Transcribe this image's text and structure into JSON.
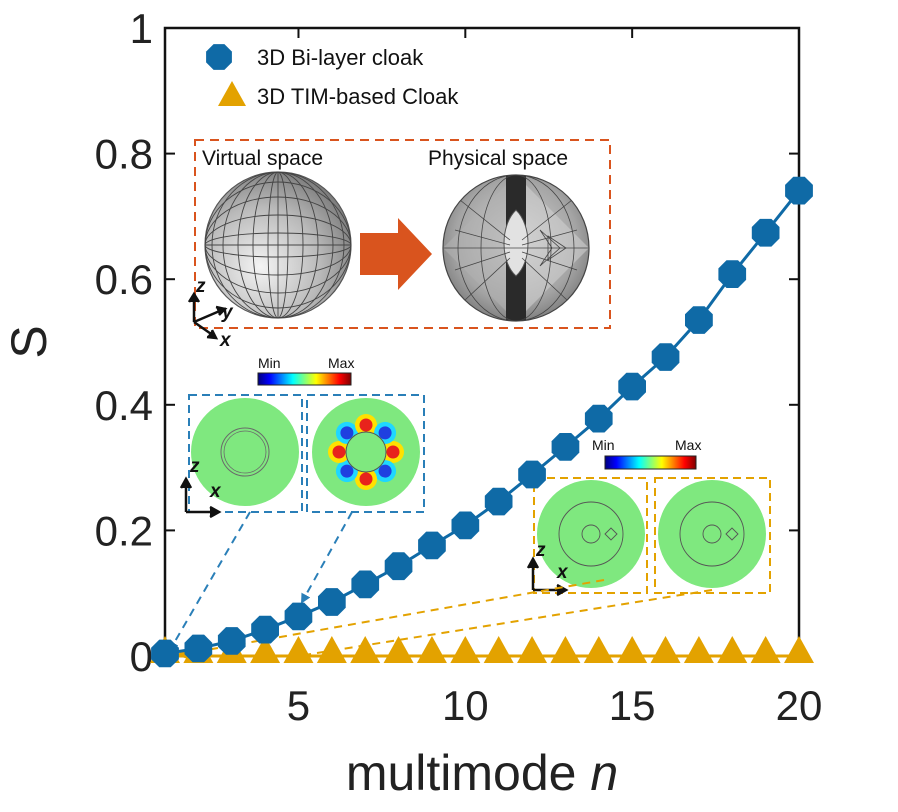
{
  "chart_data": {
    "type": "line",
    "title": "",
    "xlabel": "multimode",
    "xlabel_italic": "n",
    "ylabel": "S",
    "xlim": [
      1,
      20
    ],
    "ylim": [
      0,
      1
    ],
    "x_ticks": [
      5,
      10,
      15,
      20
    ],
    "y_ticks": [
      0,
      0.2,
      0.4,
      0.6,
      0.8,
      1
    ],
    "y_tick_labels": [
      "0",
      "0.2",
      "0.4",
      "0.6",
      "0.8",
      "1"
    ],
    "grid": false,
    "legend_position": "top-left",
    "x": [
      1,
      2,
      3,
      4,
      5,
      6,
      7,
      8,
      9,
      10,
      11,
      12,
      13,
      14,
      15,
      16,
      17,
      18,
      19,
      20
    ],
    "series": [
      {
        "name": "3D Bi-layer cloak",
        "marker": "circle",
        "color": "#0f6aa6",
        "values": [
          0.004,
          0.012,
          0.024,
          0.042,
          0.063,
          0.086,
          0.114,
          0.143,
          0.176,
          0.208,
          0.246,
          0.289,
          0.333,
          0.378,
          0.429,
          0.476,
          0.535,
          0.608,
          0.674,
          0.741
        ]
      },
      {
        "name": "3D TIM-based Cloak",
        "marker": "triangle",
        "color": "#e3a200",
        "values": [
          0,
          0,
          0,
          0,
          0,
          0,
          0,
          0,
          0,
          0,
          0,
          0,
          0,
          0,
          0,
          0,
          0,
          0,
          0,
          0
        ]
      }
    ]
  },
  "insets": {
    "mapping": {
      "virtual_label": "Virtual space",
      "physical_label": "Physical space",
      "axes": {
        "z": "z",
        "y": "y",
        "x": "x"
      },
      "colors": {
        "frame": "#d9541e",
        "arrow": "#d9541e"
      }
    },
    "bilayer_fields": {
      "colorbar_min": "Min",
      "colorbar_max": "Max",
      "axes": {
        "z": "z",
        "x": "x"
      },
      "frame_color": "#2a7fb8"
    },
    "tim_fields": {
      "colorbar_min": "Min",
      "colorbar_max": "Max",
      "axes": {
        "z": "z",
        "x": "x"
      },
      "frame_color": "#e3a200"
    }
  }
}
